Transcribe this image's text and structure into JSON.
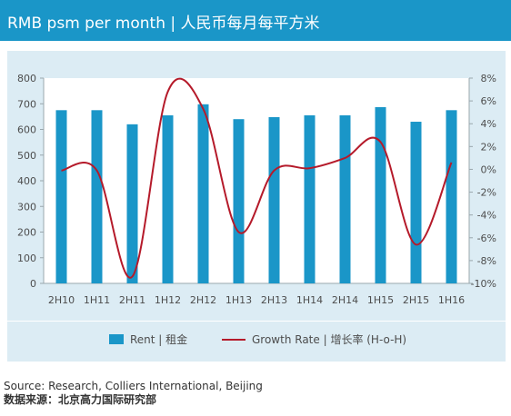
{
  "header": {
    "title": "RMB psm per month | 人民币每月每平方米"
  },
  "chart_data": {
    "type": "bar",
    "categories": [
      "2H10",
      "1H11",
      "2H11",
      "1H12",
      "2H12",
      "1H13",
      "2H13",
      "1H14",
      "2H14",
      "1H15",
      "2H15",
      "1H16"
    ],
    "series": [
      {
        "name": "Rent | 租金",
        "type": "bar",
        "axis": "left",
        "values": [
          675,
          675,
          620,
          655,
          698,
          640,
          648,
          655,
          655,
          687,
          630,
          675
        ]
      },
      {
        "name": "Growth Rate | 增长率 (H-o-H)",
        "type": "line",
        "axis": "right",
        "values": [
          -0.1,
          -0.1,
          -9.4,
          6.8,
          5.3,
          -5.5,
          -0.1,
          0.1,
          1.0,
          2.4,
          -6.6,
          0.6
        ]
      }
    ],
    "y_left": {
      "ylim": [
        0,
        800
      ],
      "ticks": [
        "0",
        "100",
        "200",
        "300",
        "400",
        "500",
        "600",
        "700",
        "800"
      ]
    },
    "y_right": {
      "ylim": [
        -10,
        8
      ],
      "ticks": [
        "-10%",
        "-8%",
        "-6%",
        "-4%",
        "-2%",
        "0%",
        "2%",
        "4%",
        "6%",
        "8%"
      ]
    },
    "grid": false,
    "legend_position": "bottom",
    "colors": {
      "bar": "#1a96c8",
      "line": "#b51a2a"
    }
  },
  "legend": {
    "bar_label": "Rent | 租金",
    "line_label": "Growth Rate | 增长率 (H-o-H)"
  },
  "source": {
    "line1": "Source: Research, Colliers International, Beijing",
    "line2": "数据来源：北京高力国际研究部"
  }
}
